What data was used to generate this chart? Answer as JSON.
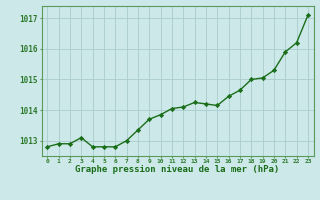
{
  "x": [
    0,
    1,
    2,
    3,
    4,
    5,
    6,
    7,
    8,
    9,
    10,
    11,
    12,
    13,
    14,
    15,
    16,
    17,
    18,
    19,
    20,
    21,
    22,
    23
  ],
  "y": [
    1012.8,
    1012.9,
    1012.9,
    1013.1,
    1012.8,
    1012.8,
    1012.8,
    1013.0,
    1013.35,
    1013.7,
    1013.85,
    1014.05,
    1014.1,
    1014.25,
    1014.2,
    1014.15,
    1014.45,
    1014.65,
    1015.0,
    1015.05,
    1015.3,
    1015.9,
    1016.2,
    1017.1
  ],
  "line_color": "#1a6e1a",
  "marker_color": "#1a6e1a",
  "bg_color": "#cce8e8",
  "grid_color": "#aacccc",
  "axis_color": "#2d7a2d",
  "xlabel": "Graphe pression niveau de la mer (hPa)",
  "xlabel_color": "#1a6e1a",
  "tick_color": "#2d7a2d",
  "ylim": [
    1012.5,
    1017.4
  ],
  "yticks": [
    1013,
    1014,
    1015,
    1016,
    1017
  ],
  "spine_color": "#5a9a5a"
}
